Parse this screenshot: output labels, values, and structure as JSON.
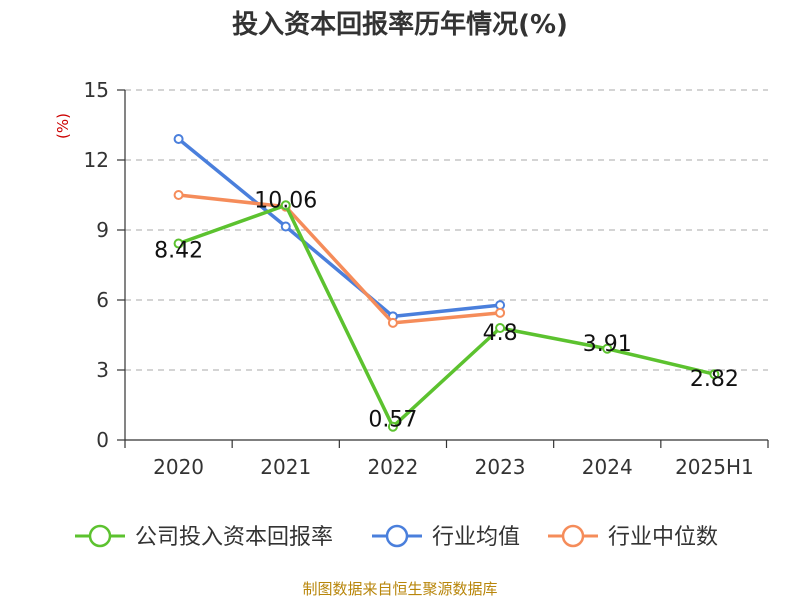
{
  "title": "投入资本回报率历年情况(%)",
  "source_note": "制图数据来自恒生聚源数据库",
  "colors": {
    "company": "#5cc22f",
    "industry_avg": "#4a7fdc",
    "industry_median": "#f58c5a",
    "grid": "#bbbbbb",
    "axis": "#333333"
  },
  "chart_data": {
    "type": "line",
    "title": "投入资本回报率历年情况(%)",
    "ylabel": "(%)",
    "xlabel": "",
    "categories": [
      "2020",
      "2021",
      "2022",
      "2023",
      "2024",
      "2025H1"
    ],
    "ylim": [
      0,
      15
    ],
    "yticks": [
      0,
      3,
      6,
      9,
      12,
      15
    ],
    "grid": true,
    "legend_position": "bottom",
    "series": [
      {
        "name": "公司投入资本回报率",
        "color_key": "company",
        "values": [
          8.42,
          10.06,
          0.57,
          4.8,
          3.91,
          2.82
        ],
        "labels": [
          "8.42",
          "10.06",
          "0.57",
          "4.8",
          "3.91",
          "2.82"
        ]
      },
      {
        "name": "行业均值",
        "color_key": "industry_avg",
        "values": [
          12.9,
          9.15,
          5.3,
          5.78,
          null,
          null
        ]
      },
      {
        "name": "行业中位数",
        "color_key": "industry_median",
        "values": [
          10.5,
          10.0,
          5.02,
          5.45,
          null,
          null
        ]
      }
    ]
  }
}
